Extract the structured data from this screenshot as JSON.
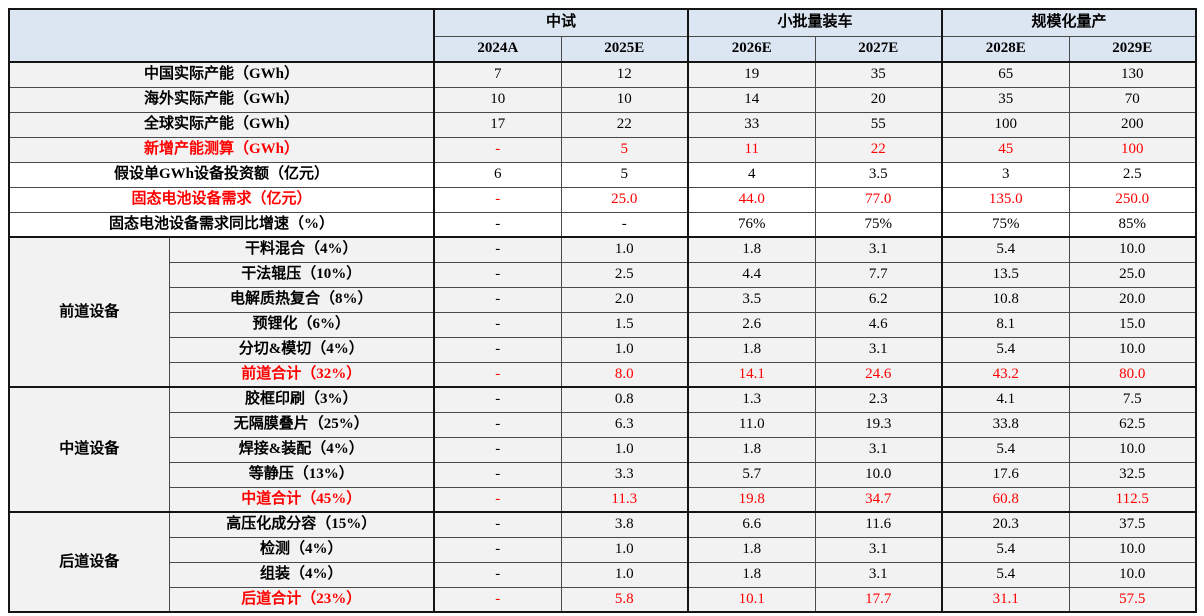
{
  "colors": {
    "header_fill": "#dce6f2",
    "band_fill": "#f2f2f2",
    "white_fill": "#ffffff",
    "red_text": "#ff0000",
    "border_dark": "#151515",
    "border_thin": "#4a4a4a"
  },
  "table": {
    "header": {
      "corner": "",
      "groups": [
        {
          "label": "中试",
          "years": [
            "2024A",
            "2025E"
          ]
        },
        {
          "label": "小批量装车",
          "years": [
            "2026E",
            "2027E"
          ]
        },
        {
          "label": "规模化量产",
          "years": [
            "2028E",
            "2029E"
          ]
        }
      ]
    },
    "top_rows": [
      {
        "label": "中国实际产能（GWh）",
        "values": [
          "7",
          "12",
          "19",
          "35",
          "65",
          "130"
        ],
        "red": false,
        "fill": "gray"
      },
      {
        "label": "海外实际产能（GWh）",
        "values": [
          "10",
          "10",
          "14",
          "20",
          "35",
          "70"
        ],
        "red": false,
        "fill": "gray"
      },
      {
        "label": "全球实际产能（GWh）",
        "values": [
          "17",
          "22",
          "33",
          "55",
          "100",
          "200"
        ],
        "red": false,
        "fill": "gray"
      },
      {
        "label": "新增产能测算（GWh）",
        "values": [
          "-",
          "5",
          "11",
          "22",
          "45",
          "100"
        ],
        "red": true,
        "fill": "gray"
      },
      {
        "label": "假设单GWh设备投资额（亿元）",
        "values": [
          "6",
          "5",
          "4",
          "3.5",
          "3",
          "2.5"
        ],
        "red": false,
        "fill": "white"
      },
      {
        "label": "固态电池设备需求（亿元）",
        "values": [
          "-",
          "25.0",
          "44.0",
          "77.0",
          "135.0",
          "250.0"
        ],
        "red": true,
        "fill": "white"
      },
      {
        "label": "固态电池设备需求同比增速（%）",
        "values": [
          "-",
          "-",
          "76%",
          "75%",
          "75%",
          "85%"
        ],
        "red": false,
        "fill": "white"
      }
    ],
    "sections": [
      {
        "group": "前道设备",
        "rows": [
          {
            "label": "干料混合（4%）",
            "values": [
              "-",
              "1.0",
              "1.8",
              "3.1",
              "5.4",
              "10.0"
            ],
            "red": false
          },
          {
            "label": "干法辊压（10%）",
            "values": [
              "-",
              "2.5",
              "4.4",
              "7.7",
              "13.5",
              "25.0"
            ],
            "red": false
          },
          {
            "label": "电解质热复合（8%）",
            "values": [
              "-",
              "2.0",
              "3.5",
              "6.2",
              "10.8",
              "20.0"
            ],
            "red": false
          },
          {
            "label": "预锂化（6%）",
            "values": [
              "-",
              "1.5",
              "2.6",
              "4.6",
              "8.1",
              "15.0"
            ],
            "red": false
          },
          {
            "label": "分切&模切（4%）",
            "values": [
              "-",
              "1.0",
              "1.8",
              "3.1",
              "5.4",
              "10.0"
            ],
            "red": false
          },
          {
            "label": "前道合计（32%）",
            "values": [
              "-",
              "8.0",
              "14.1",
              "24.6",
              "43.2",
              "80.0"
            ],
            "red": true
          }
        ]
      },
      {
        "group": "中道设备",
        "rows": [
          {
            "label": "胶框印刷（3%）",
            "values": [
              "-",
              "0.8",
              "1.3",
              "2.3",
              "4.1",
              "7.5"
            ],
            "red": false
          },
          {
            "label": "无隔膜叠片（25%）",
            "values": [
              "-",
              "6.3",
              "11.0",
              "19.3",
              "33.8",
              "62.5"
            ],
            "red": false
          },
          {
            "label": "焊接&装配（4%）",
            "values": [
              "-",
              "1.0",
              "1.8",
              "3.1",
              "5.4",
              "10.0"
            ],
            "red": false
          },
          {
            "label": "等静压（13%）",
            "values": [
              "-",
              "3.3",
              "5.7",
              "10.0",
              "17.6",
              "32.5"
            ],
            "red": false
          },
          {
            "label": "中道合计（45%）",
            "values": [
              "-",
              "11.3",
              "19.8",
              "34.7",
              "60.8",
              "112.5"
            ],
            "red": true
          }
        ]
      },
      {
        "group": "后道设备",
        "rows": [
          {
            "label": "高压化成分容（15%）",
            "values": [
              "-",
              "3.8",
              "6.6",
              "11.6",
              "20.3",
              "37.5"
            ],
            "red": false
          },
          {
            "label": "检测（4%）",
            "values": [
              "-",
              "1.0",
              "1.8",
              "3.1",
              "5.4",
              "10.0"
            ],
            "red": false
          },
          {
            "label": "组装（4%）",
            "values": [
              "-",
              "1.0",
              "1.8",
              "3.1",
              "5.4",
              "10.0"
            ],
            "red": false
          },
          {
            "label": "后道合计（23%）",
            "values": [
              "-",
              "5.8",
              "10.1",
              "17.7",
              "31.1",
              "57.5"
            ],
            "red": true
          }
        ]
      }
    ]
  }
}
